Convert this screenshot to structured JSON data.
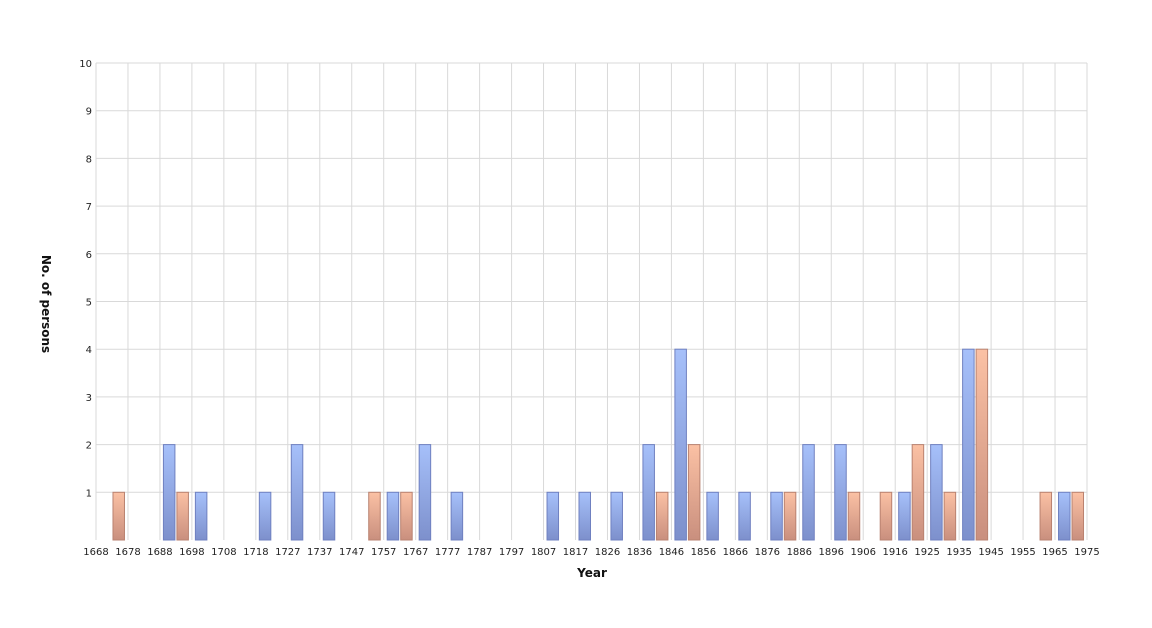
{
  "chart_data": {
    "type": "bar",
    "title": "",
    "xlabel": "Year",
    "ylabel": "No. of persons",
    "ylim": [
      0,
      10
    ],
    "yticks": [
      "1",
      "2",
      "3",
      "4",
      "5",
      "6",
      "7",
      "8",
      "9",
      "10"
    ],
    "x_tick_labels": [
      "1668",
      "1678",
      "1688",
      "1698",
      "1708",
      "1718",
      "1727",
      "1737",
      "1747",
      "1757",
      "1767",
      "1777",
      "1787",
      "1797",
      "1807",
      "1817",
      "1826",
      "1836",
      "1846",
      "1856",
      "1866",
      "1876",
      "1886",
      "1896",
      "1906",
      "1916",
      "1925",
      "1935",
      "1945",
      "1955",
      "1965",
      "1975"
    ],
    "grid": true,
    "legend": "none",
    "series": [
      {
        "color": "#8aa6e6",
        "values": [
          0,
          0,
          2,
          1,
          0,
          1,
          2,
          1,
          0,
          1,
          2,
          1,
          0,
          0,
          1,
          1,
          1,
          2,
          4,
          1,
          1,
          1,
          2,
          2,
          0,
          1,
          2,
          4,
          0,
          0,
          1,
          0
        ]
      },
      {
        "color": "#eeaa8c",
        "values": [
          1,
          0,
          1,
          0,
          0,
          0,
          0,
          0,
          1,
          1,
          0,
          0,
          0,
          0,
          0,
          0,
          0,
          1,
          2,
          0,
          0,
          1,
          0,
          1,
          1,
          2,
          1,
          4,
          0,
          1,
          1,
          0
        ]
      }
    ]
  }
}
